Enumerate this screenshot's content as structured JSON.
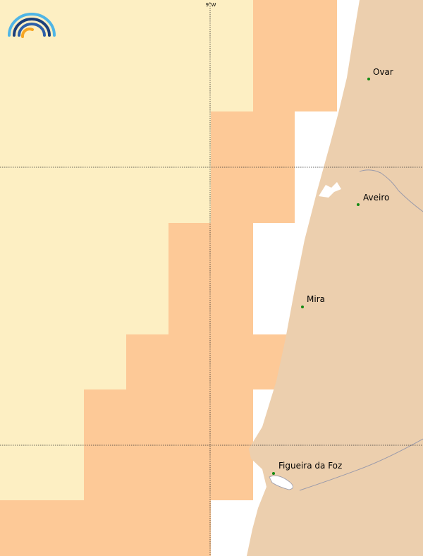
{
  "map": {
    "grid_label": "9°W",
    "places": [
      {
        "name": "Ovar"
      },
      {
        "name": "Aveiro"
      },
      {
        "name": "Mira"
      },
      {
        "name": "Figueira da Foz"
      }
    ]
  }
}
